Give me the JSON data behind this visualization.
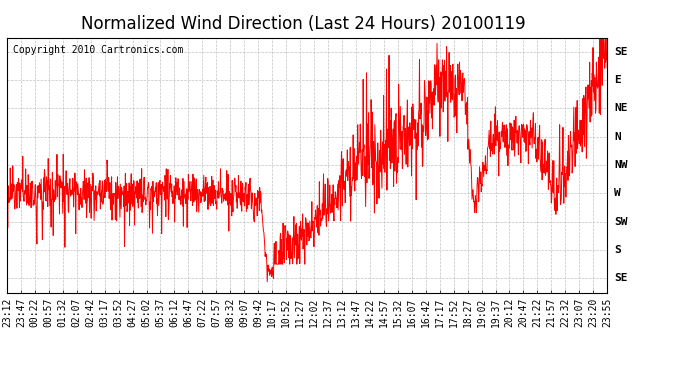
{
  "title": "Normalized Wind Direction (Last 24 Hours) 20100119",
  "copyright": "Copyright 2010 Cartronics.com",
  "line_color": "#ff0000",
  "background_color": "#ffffff",
  "grid_color": "#bbbbbb",
  "ytick_labels": [
    "SE",
    "S",
    "SW",
    "W",
    "NW",
    "N",
    "NE",
    "E",
    "SE"
  ],
  "ytick_values": [
    0,
    1,
    2,
    3,
    4,
    5,
    6,
    7,
    8
  ],
  "ylim": [
    -0.5,
    8.5
  ],
  "xtick_labels": [
    "23:12",
    "23:47",
    "00:22",
    "00:57",
    "01:32",
    "02:07",
    "02:42",
    "03:17",
    "03:52",
    "04:27",
    "05:02",
    "05:37",
    "06:12",
    "06:47",
    "07:22",
    "07:57",
    "08:32",
    "09:07",
    "09:42",
    "10:17",
    "10:52",
    "11:27",
    "12:02",
    "12:37",
    "13:12",
    "13:47",
    "14:22",
    "14:57",
    "15:32",
    "16:07",
    "16:42",
    "17:17",
    "17:52",
    "18:27",
    "19:02",
    "19:37",
    "20:12",
    "20:47",
    "21:22",
    "21:57",
    "22:32",
    "23:07",
    "23:20",
    "23:55"
  ],
  "title_fontsize": 12,
  "tick_fontsize": 7,
  "copyright_fontsize": 7
}
